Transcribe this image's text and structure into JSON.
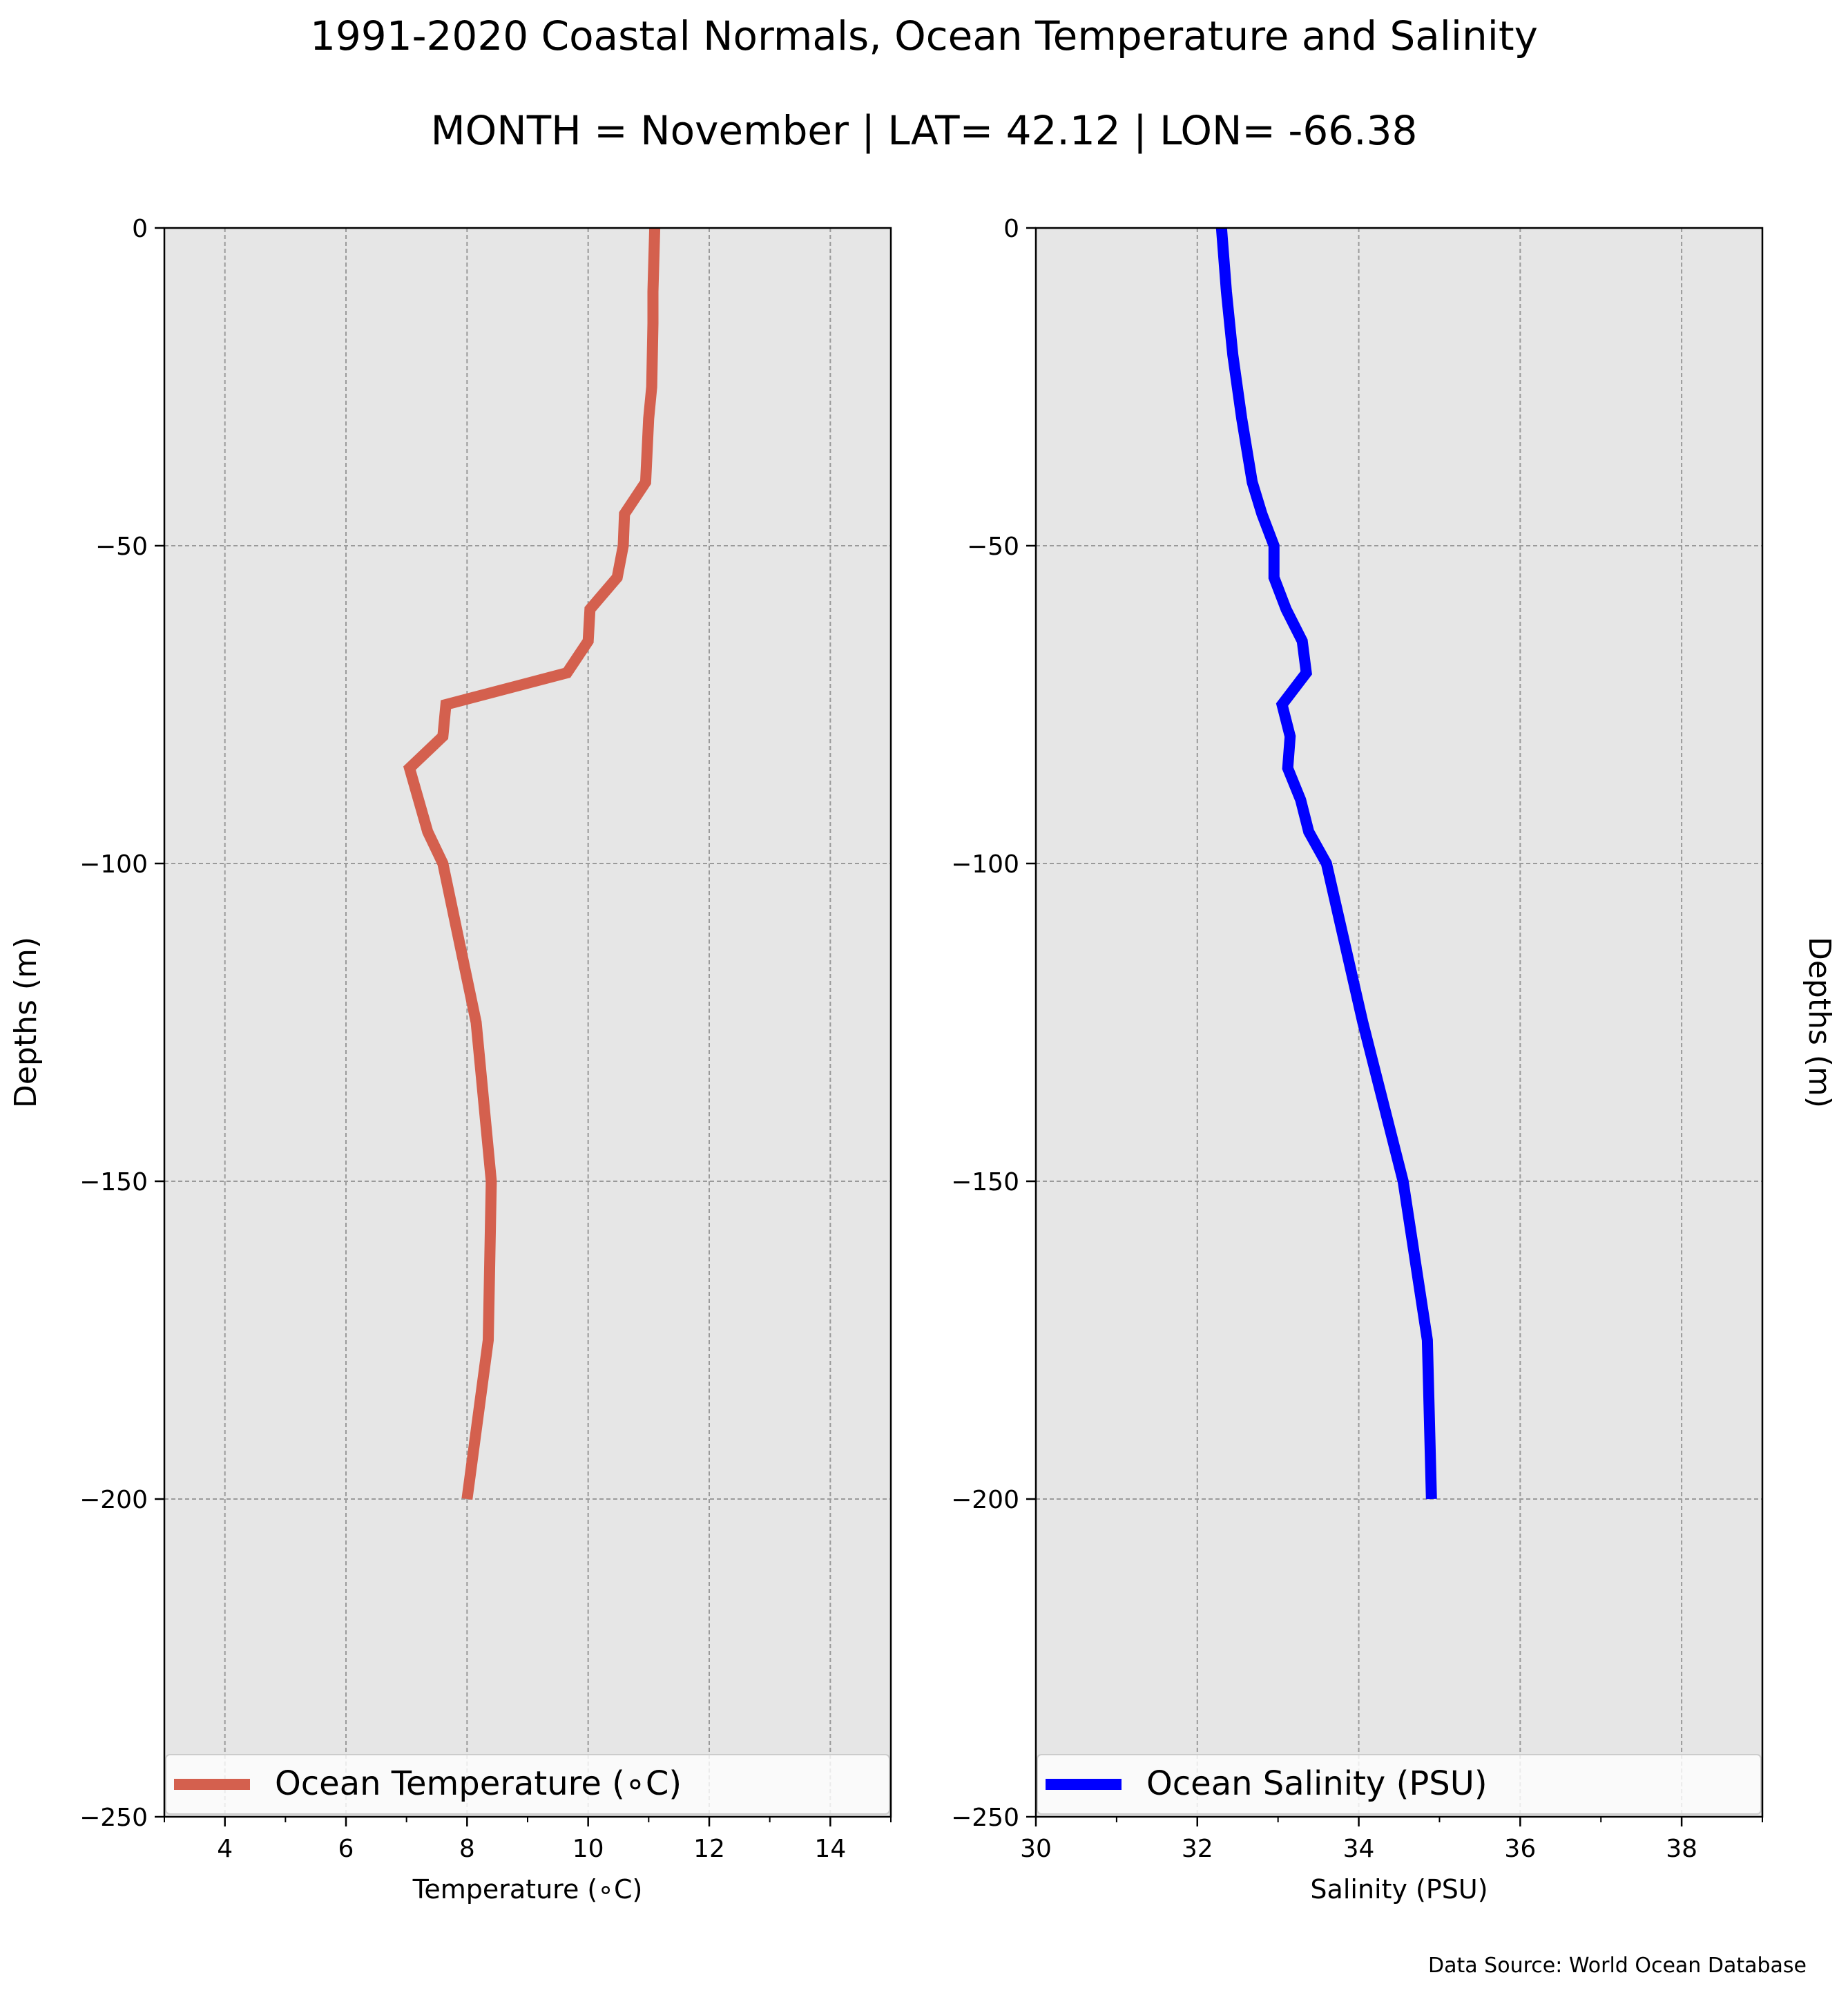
{
  "title": "1991-2020 Coastal Normals, Ocean Temperature and Salinity",
  "subtitle": "MONTH = November | LAT= 42.12 | LON= -66.38",
  "source": "Data Source: World Ocean Database",
  "chart_data": [
    {
      "type": "line",
      "xlabel": "Temperature (∘C)",
      "ylabel": "Depths (m)",
      "xlim": [
        3,
        15
      ],
      "ylim": [
        -250,
        0
      ],
      "xticks": [
        4,
        6,
        8,
        10,
        12,
        14
      ],
      "yticks": [
        0,
        -50,
        -100,
        -150,
        -200,
        -250
      ],
      "grid": true,
      "legend": "lower center",
      "series": [
        {
          "name": "Ocean Temperature (∘C)",
          "color": "#d4604e",
          "x": [
            11.1,
            11.07,
            11.07,
            11.05,
            11.0,
            10.95,
            10.6,
            10.58,
            10.48,
            10.03,
            10.0,
            9.65,
            7.65,
            7.6,
            7.05,
            7.35,
            7.6,
            8.15,
            8.4,
            8.35,
            8.0
          ],
          "y": [
            0,
            -10,
            -15,
            -25,
            -30,
            -40,
            -45,
            -50,
            -55,
            -60,
            -65,
            -70,
            -75,
            -80,
            -85,
            -95,
            -100,
            -125,
            -150,
            -175,
            -200
          ]
        }
      ]
    },
    {
      "type": "line",
      "xlabel": "Salinity (PSU)",
      "ylabel": "Depths (m)",
      "xlim": [
        30,
        39
      ],
      "ylim": [
        -250,
        0
      ],
      "xticks": [
        30,
        32,
        34,
        36,
        38
      ],
      "yticks": [
        0,
        -50,
        -100,
        -150,
        -200,
        -250
      ],
      "grid": true,
      "legend": "lower center",
      "series": [
        {
          "name": "Ocean Salinity (PSU)",
          "color": "#0000ff",
          "x": [
            32.3,
            32.36,
            32.44,
            32.55,
            32.68,
            32.8,
            32.95,
            32.95,
            33.1,
            33.3,
            33.35,
            33.05,
            33.15,
            33.12,
            33.28,
            33.38,
            33.6,
            34.05,
            34.55,
            34.85,
            34.9
          ],
          "y": [
            0,
            -10,
            -20,
            -30,
            -40,
            -45,
            -50,
            -55,
            -60,
            -65,
            -70,
            -75,
            -80,
            -85,
            -90,
            -95,
            -100,
            -125,
            -150,
            -175,
            -200
          ]
        }
      ]
    }
  ]
}
